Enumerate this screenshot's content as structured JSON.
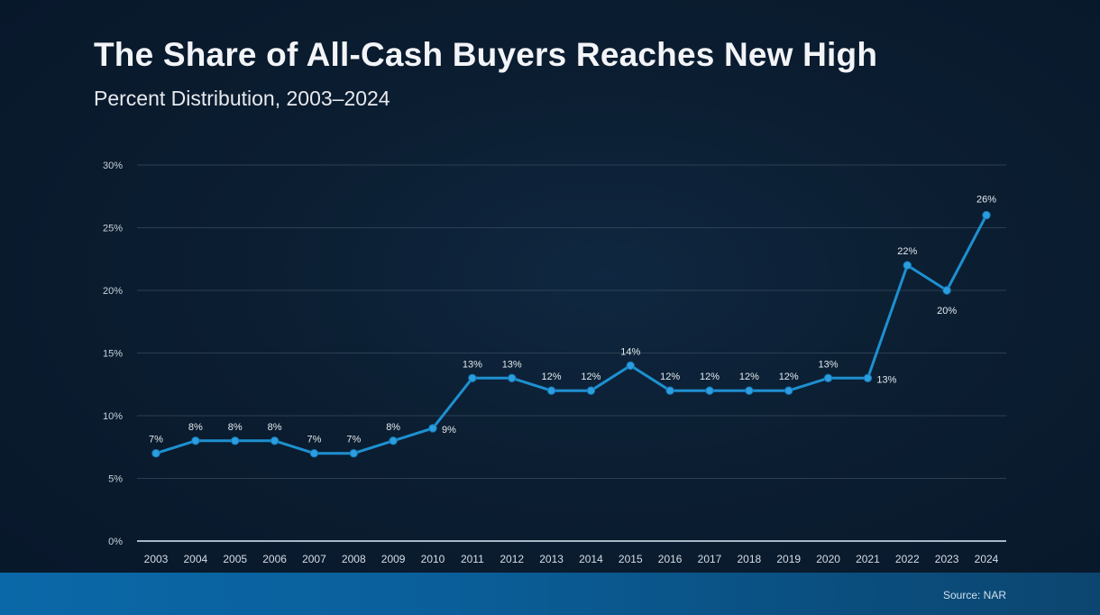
{
  "chart_data": {
    "type": "line",
    "title": "The Share of All-Cash Buyers Reaches New High",
    "subtitle": "Percent Distribution, 2003–2024",
    "xlabel": "",
    "ylabel": "",
    "x": [
      "2003",
      "2004",
      "2005",
      "2006",
      "2007",
      "2008",
      "2009",
      "2010",
      "2011",
      "2012",
      "2013",
      "2014",
      "2015",
      "2016",
      "2017",
      "2018",
      "2019",
      "2020",
      "2021",
      "2022",
      "2023",
      "2024"
    ],
    "series": [
      {
        "name": "All-Cash Buyers",
        "values": [
          7,
          8,
          8,
          8,
          7,
          7,
          8,
          9,
          13,
          13,
          12,
          12,
          14,
          12,
          12,
          12,
          12,
          13,
          13,
          22,
          20,
          26
        ],
        "color": "#1e90d0"
      }
    ],
    "data_labels": [
      "7%",
      "8%",
      "8%",
      "8%",
      "7%",
      "7%",
      "8%",
      "9%",
      "13%",
      "13%",
      "12%",
      "12%",
      "14%",
      "12%",
      "12%",
      "12%",
      "12%",
      "13%",
      "13%",
      "22%",
      "20%",
      "26%"
    ],
    "ylim": [
      0,
      30
    ],
    "yticks": [
      0,
      5,
      10,
      15,
      20,
      25,
      30
    ],
    "ytick_labels": [
      "0%",
      "5%",
      "10%",
      "15%",
      "20%",
      "25%",
      "30%"
    ],
    "grid": true,
    "legend": "none",
    "source": "Source: NAR"
  },
  "footer": {
    "source": "Source: NAR"
  }
}
